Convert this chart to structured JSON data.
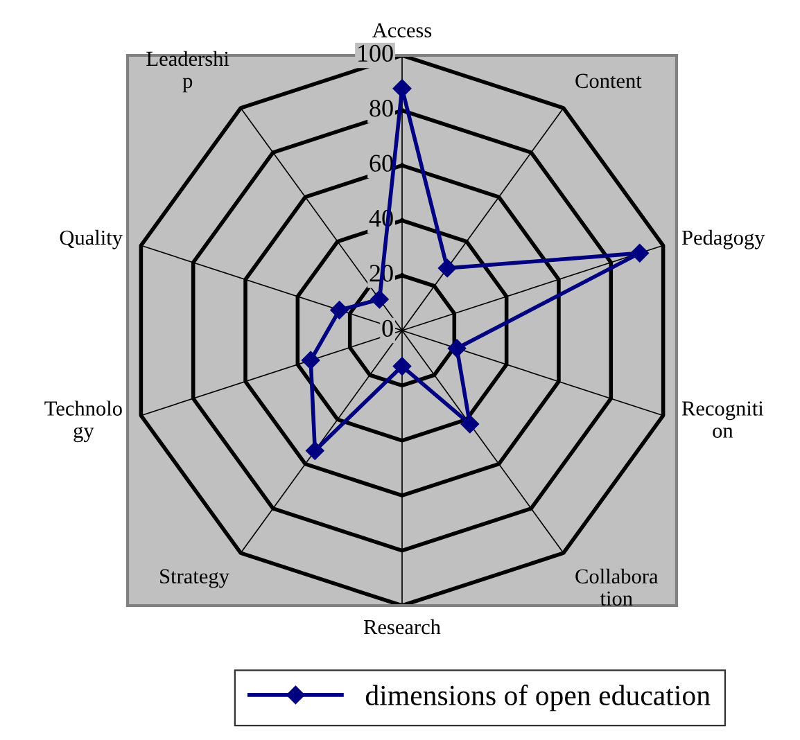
{
  "chart_data": {
    "type": "radar",
    "categories": [
      "Access",
      "Content",
      "Pedagogy",
      "Recogniti\non",
      "Collabora\ntion",
      "Research",
      "Strategy",
      "Technolo\ngy",
      "Quality",
      "Leadershi\np"
    ],
    "series": [
      {
        "name": "dimensions of open education",
        "color": "#000080",
        "values": [
          88,
          28,
          91,
          21,
          42,
          13,
          54,
          35,
          24,
          14
        ]
      }
    ],
    "ylim": [
      0,
      100
    ],
    "yticks": [
      0,
      20,
      40,
      60,
      80,
      100
    ],
    "marker": "diamond",
    "line_style": "solid",
    "grid": true,
    "legend": "bottom"
  }
}
